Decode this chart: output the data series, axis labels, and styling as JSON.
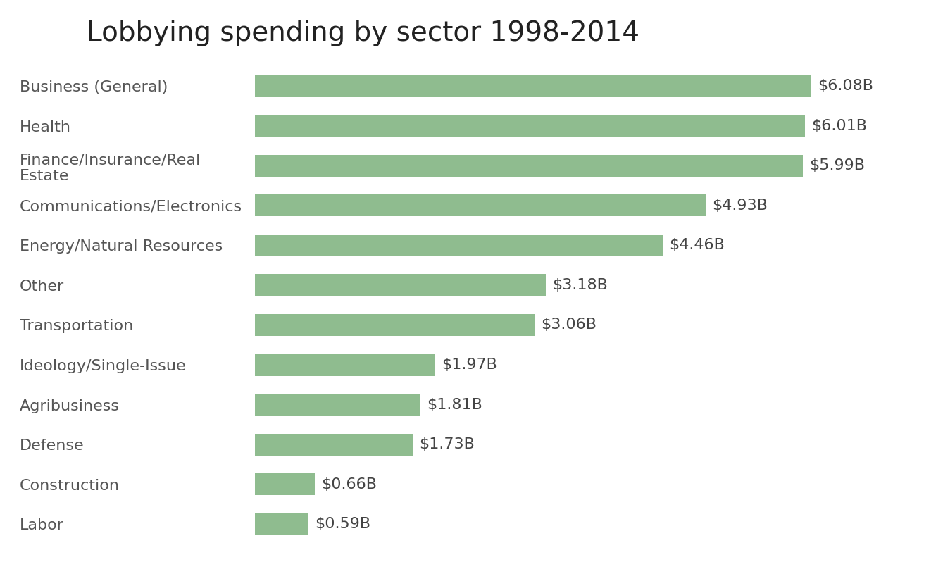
{
  "title": "Lobbying spending by sector 1998-2014",
  "categories": [
    "Business (General)",
    "Health",
    "Finance/Insurance/Real\nEstate",
    "Communications/Electronics",
    "Energy/Natural Resources",
    "Other",
    "Transportation",
    "Ideology/Single-Issue",
    "Agribusiness",
    "Defense",
    "Construction",
    "Labor"
  ],
  "values": [
    6.08,
    6.01,
    5.99,
    4.93,
    4.46,
    3.18,
    3.06,
    1.97,
    1.81,
    1.73,
    0.66,
    0.59
  ],
  "labels": [
    "$6.08B",
    "$6.01B",
    "$5.99B",
    "$4.93B",
    "$4.46B",
    "$3.18B",
    "$3.06B",
    "$1.97B",
    "$1.81B",
    "$1.73B",
    "$0.66B",
    "$0.59B"
  ],
  "bar_color": "#8fbc8f",
  "background_color": "#ffffff",
  "title_fontsize": 28,
  "label_fontsize": 16,
  "value_fontsize": 16,
  "bar_height": 0.55,
  "xlim": [
    0,
    6.8
  ],
  "label_color": "#555555",
  "value_color": "#444444",
  "title_color": "#222222"
}
